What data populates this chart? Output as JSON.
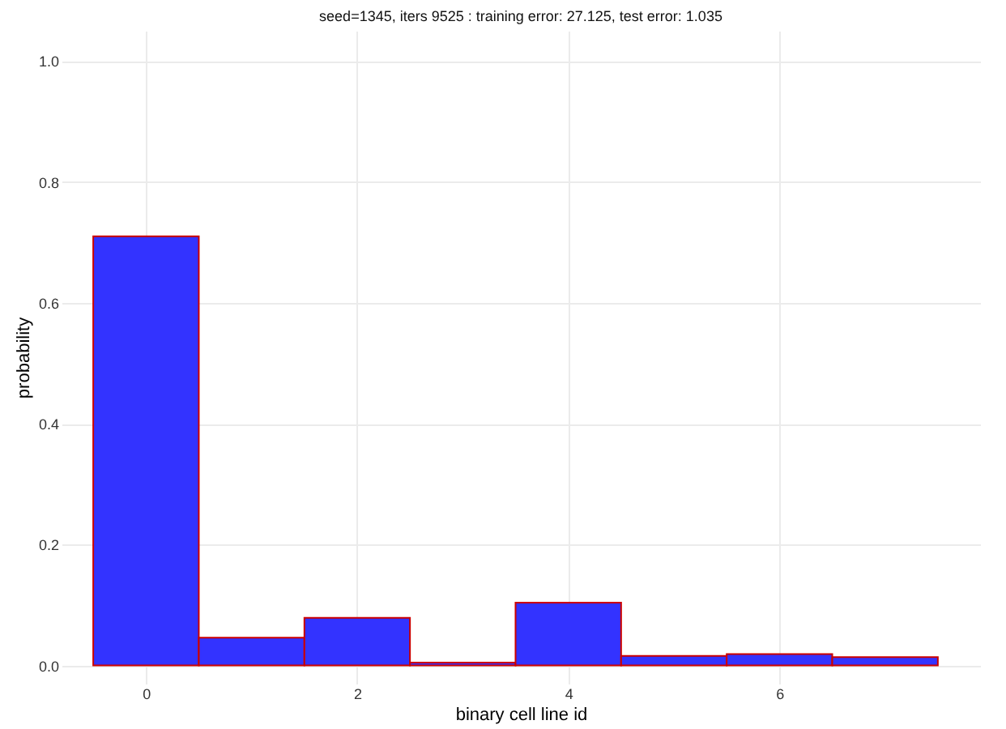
{
  "chart_data": {
    "type": "histogram",
    "title": "seed=1345, iters 9525 : training error: 27.125, test error: 1.035",
    "xlabel": "binary cell line id",
    "ylabel": "probability",
    "bins": [
      -0.5,
      0.5,
      1.5,
      2.5,
      3.5,
      4.5,
      5.5,
      6.5,
      7.5
    ],
    "values": [
      0.71,
      0.046,
      0.079,
      0.005,
      0.104,
      0.016,
      0.019,
      0.014
    ],
    "color": "#3333ff",
    "xlim": [
      -0.8,
      7.9
    ],
    "xticks": [
      0,
      2,
      4,
      6
    ],
    "ylim": [
      -0.03,
      1.05
    ],
    "yticks": [
      {
        "value": 0,
        "label": "0.0"
      },
      {
        "value": 0.2,
        "label": "0.2"
      },
      {
        "value": 0.4,
        "label": "0.4"
      },
      {
        "value": 0.6,
        "label": "0.6"
      },
      {
        "value": 0.8,
        "label": "0.8"
      },
      {
        "value": 1,
        "label": "1.0"
      }
    ],
    "grid": true
  }
}
